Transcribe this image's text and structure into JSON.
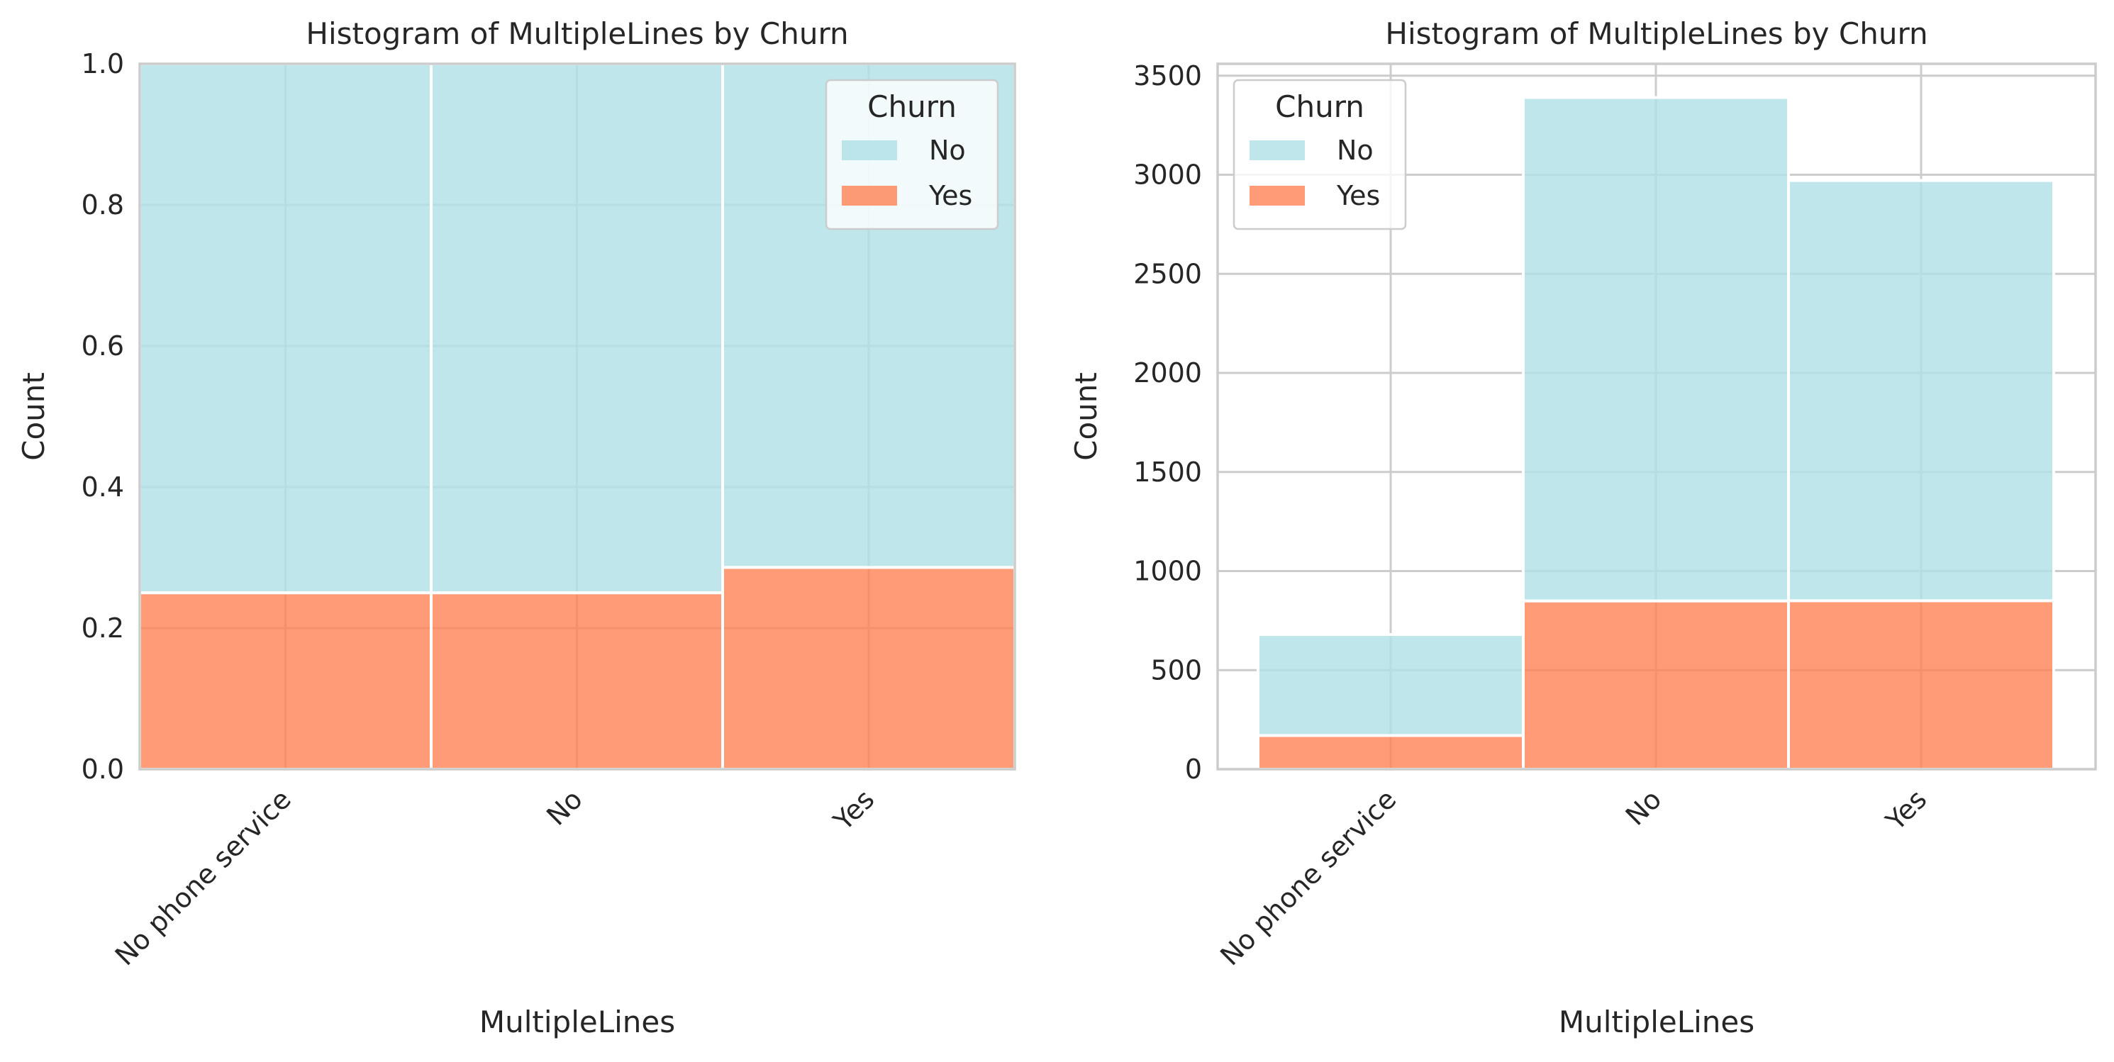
{
  "colors": {
    "no": "#b0e0e6",
    "yes": "#ff7f50",
    "grid": "#cccccc",
    "frame": "#cccccc",
    "text": "#262626"
  },
  "chart_data": [
    {
      "type": "bar",
      "stacked": true,
      "normalized": true,
      "title": "Histogram of MultipleLines by Churn",
      "xlabel": "MultipleLines",
      "ylabel": "Count",
      "categories": [
        "No phone service",
        "No",
        "Yes"
      ],
      "ylim": [
        0,
        1.0
      ],
      "yticks": [
        "0.0",
        "0.2",
        "0.4",
        "0.6",
        "0.8",
        "1.0"
      ],
      "ytick_values": [
        0,
        0.2,
        0.4,
        0.6,
        0.8,
        1.0
      ],
      "grid": true,
      "legend": {
        "title": "Churn",
        "position": "top-right"
      },
      "series": [
        {
          "name": "No",
          "values": [
            0.75,
            0.75,
            0.714
          ]
        },
        {
          "name": "Yes",
          "values": [
            0.25,
            0.25,
            0.286
          ]
        }
      ]
    },
    {
      "type": "bar",
      "stacked": true,
      "normalized": false,
      "title": "Histogram of MultipleLines by Churn",
      "xlabel": "MultipleLines",
      "ylabel": "Count",
      "categories": [
        "No phone service",
        "No",
        "Yes"
      ],
      "ylim": [
        0,
        3560
      ],
      "yticks": [
        "0",
        "500",
        "1000",
        "1500",
        "2000",
        "2500",
        "3000",
        "3500"
      ],
      "ytick_values": [
        0,
        500,
        1000,
        1500,
        2000,
        2500,
        3000,
        3500
      ],
      "grid": true,
      "legend": {
        "title": "Churn",
        "position": "top-left"
      },
      "series": [
        {
          "name": "No",
          "values": [
            510,
            2541,
            2121
          ]
        },
        {
          "name": "Yes",
          "values": [
            170,
            849,
            850
          ]
        }
      ]
    }
  ]
}
